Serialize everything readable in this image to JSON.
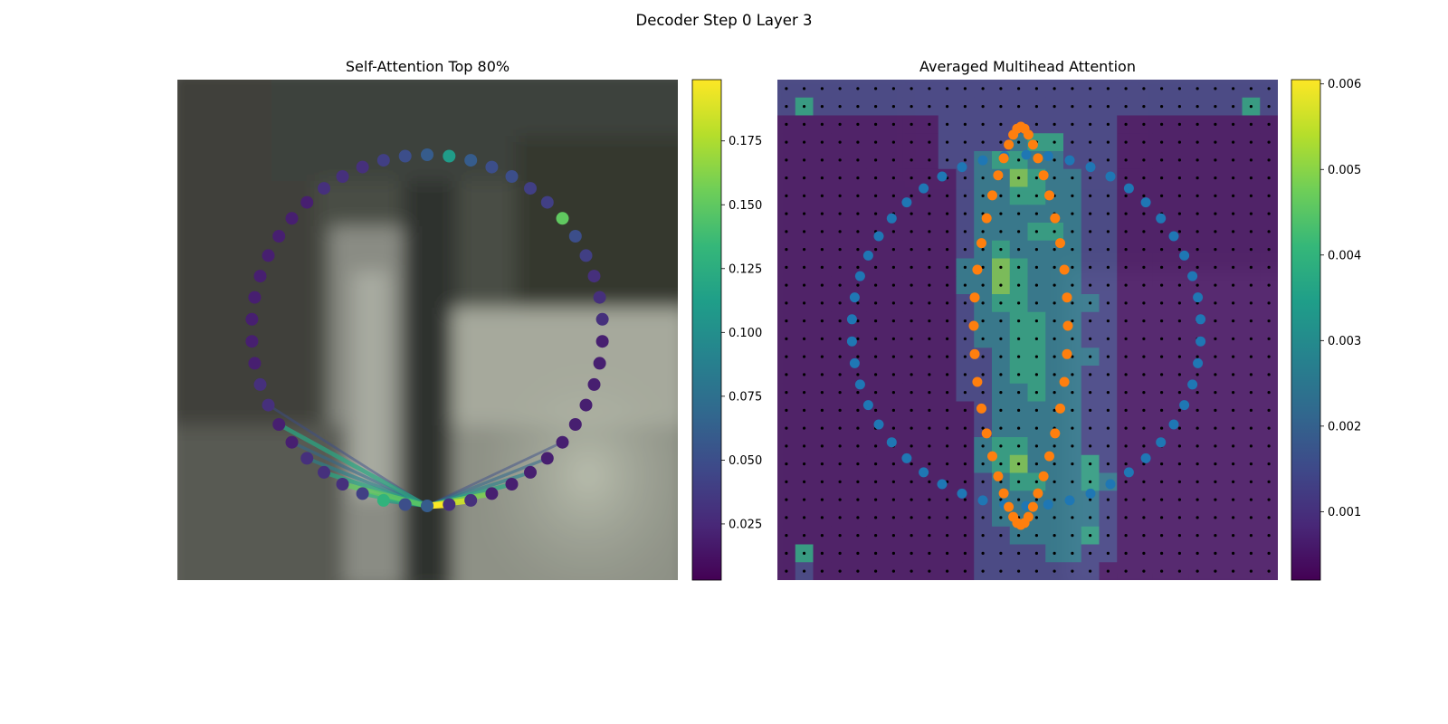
{
  "figure": {
    "title": "Decoder Step 0 Layer 3"
  },
  "colors": {
    "viridis": [
      "#440154",
      "#482878",
      "#3e4989",
      "#31688e",
      "#26828e",
      "#1f9e89",
      "#35b779",
      "#6ece58",
      "#b5de2b",
      "#fde725"
    ],
    "blue_points": "#1f77b4",
    "orange_points": "#ff7f0e",
    "grid_dot": "#000000"
  },
  "chart_data": [
    {
      "type": "scatter",
      "title": "Self-Attention Top 80%",
      "description_items": "points arranged on a ring colored by attention weight; lines from query point to attended points",
      "colorbar": {
        "ticks": [
          0.025,
          0.05,
          0.075,
          0.1,
          0.125,
          0.15,
          0.175
        ],
        "tick_labels": [
          "0.025",
          "0.050",
          "0.075",
          "0.100",
          "0.125",
          "0.150",
          "0.175"
        ],
        "range": [
          0.003,
          0.199
        ]
      },
      "query_point_index": 0,
      "point_weights": [
        0.06,
        0.05,
        0.13,
        0.04,
        0.03,
        0.03,
        0.03,
        0.02,
        0.02,
        0.03,
        0.03,
        0.02,
        0.02,
        0.02,
        0.02,
        0.02,
        0.02,
        0.02,
        0.02,
        0.02,
        0.03,
        0.03,
        0.03,
        0.04,
        0.05,
        0.06,
        0.11,
        0.06,
        0.05,
        0.05,
        0.04,
        0.04,
        0.15,
        0.05,
        0.04,
        0.03,
        0.03,
        0.03,
        0.02,
        0.02,
        0.02,
        0.02,
        0.02,
        0.02,
        0.02,
        0.02,
        0.02,
        0.02,
        0.03,
        0.03
      ],
      "links": [
        {
          "to": 49,
          "weight": 0.199
        },
        {
          "to": 48,
          "weight": 0.185
        },
        {
          "to": 47,
          "weight": 0.16
        },
        {
          "to": 46,
          "weight": 0.12
        },
        {
          "to": 45,
          "weight": 0.09
        },
        {
          "to": 44,
          "weight": 0.07
        },
        {
          "to": 43,
          "weight": 0.05
        },
        {
          "to": 2,
          "weight": 0.11
        },
        {
          "to": 3,
          "weight": 0.13
        },
        {
          "to": 4,
          "weight": 0.15
        },
        {
          "to": 5,
          "weight": 0.12
        },
        {
          "to": 6,
          "weight": 0.09
        },
        {
          "to": 7,
          "weight": 0.07
        },
        {
          "to": 8,
          "weight": 0.12
        },
        {
          "to": 9,
          "weight": 0.05
        }
      ]
    },
    {
      "type": "heatmap",
      "title": "Averaged Multihead Attention",
      "colorbar": {
        "ticks": [
          0.001,
          0.002,
          0.003,
          0.004,
          0.005,
          0.006
        ],
        "tick_labels": [
          "0.001",
          "0.002",
          "0.003",
          "0.004",
          "0.005",
          "0.006"
        ],
        "range": [
          0.0002,
          0.00605
        ]
      },
      "grid_size": [
        28,
        28
      ],
      "heat_rows": [
        "2222222222222222222222222222",
        "2422222222222222222222222242",
        "1111111112222222222111111111",
        "1111111112222344222111111111",
        "1111111112234433222111111111",
        "1111111111233543322111111111",
        "1111111111233443322111111111",
        "1111111111233333322111111111",
        "1111111111233344322111111111",
        "1111111111234333322111111111",
        "1111111111335433322111111111",
        "1111111111335433322111111111",
        "1111111111234433332111111111",
        "1111111111233443322111111111",
        "1111111111233443322111111111",
        "1111111111223443332111111111",
        "1111111111223443322111111111",
        "1111111111223343322111111111",
        "1111111111123333322111111111",
        "1111111111123333322111111111",
        "1111111111134433322111111111",
        "1111111111134533342111111111",
        "1111111111123443343111111111",
        "1111111111123333332111111111",
        "1111111111123333332111111111",
        "1111111111122333342111111111",
        "1411111111122223322111111111",
        "1211111111122222221111111111"
      ],
      "ring_points_count": 50,
      "sampling_curve_points_count": 44
    }
  ]
}
